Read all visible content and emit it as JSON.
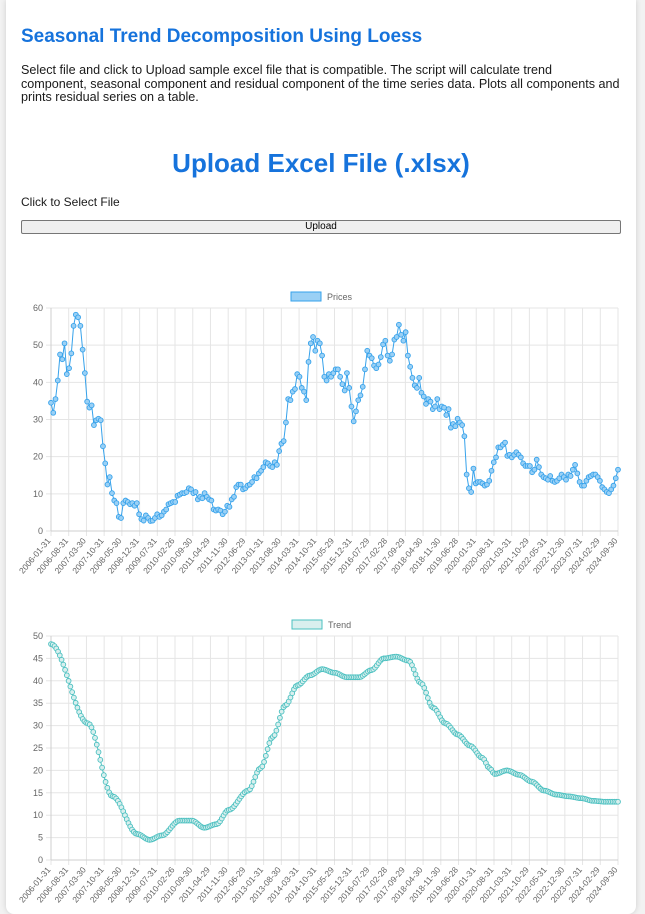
{
  "header": {
    "title": "Seasonal Trend Decomposition Using Loess",
    "description": "Select file and click to Upload sample excel file that is compatible. The script will calculate trend component, seasonal component and residual component of the time series data. Plots all components and prints residual series on a table."
  },
  "upload": {
    "heading": "Upload Excel File (.xlsx)",
    "select_label": "Click to Select File",
    "button_label": "Upload"
  },
  "colors": {
    "title": "#1673dc",
    "prices_line": "#36a2eb",
    "prices_fill": "#9ad0f5",
    "trend_line": "#4bc0c0",
    "trend_fill": "#d9efee"
  },
  "chart_data": [
    {
      "type": "line",
      "legend_position": "top",
      "grid": true,
      "ylim": [
        0,
        60
      ],
      "yticks": [
        0,
        10,
        20,
        30,
        40,
        50,
        60
      ],
      "x_tick_labels": [
        "2006-01-31",
        "2006-08-31",
        "2007-03-30",
        "2007-10-31",
        "2008-05-30",
        "2008-12-31",
        "2009-07-31",
        "2010-02-26",
        "2010-09-30",
        "2011-04-29",
        "2011-11-30",
        "2012-06-29",
        "2013-01-31",
        "2013-08-30",
        "2014-03-31",
        "2014-10-31",
        "2015-05-29",
        "2015-12-31",
        "2016-07-29",
        "2017-02-28",
        "2017-09-29",
        "2018-04-30",
        "2018-11-30",
        "2019-06-28",
        "2020-01-31",
        "2020-08-31",
        "2021-03-31",
        "2021-10-29",
        "2022-05-31",
        "2022-12-30",
        "2023-07-31",
        "2024-02-29",
        "2024-09-30"
      ],
      "series": [
        {
          "name": "Prices",
          "values": [
            34.5,
            31.8,
            35.5,
            40.5,
            47.5,
            46.2,
            50.5,
            42.2,
            43.8,
            47.8,
            55.2,
            58.2,
            57.5,
            55.2,
            48.8,
            42.5,
            34.8,
            33.2,
            33.8,
            28.5,
            29.8,
            30.2,
            29.8,
            22.8,
            18.2,
            12.5,
            14.5,
            10.2,
            8.2,
            7.5,
            3.8,
            3.5,
            7.5,
            8.2,
            7.8,
            7.2,
            7.5,
            6.8,
            7.5,
            4.5,
            3.2,
            2.8,
            4.2,
            3.5,
            2.7,
            2.8,
            3.5,
            4.5,
            3.8,
            4.2,
            5.2,
            5.8,
            7.2,
            7.5,
            7.8,
            7.8,
            9.5,
            9.8,
            10.2,
            10.2,
            10.5,
            11.5,
            11.2,
            10.2,
            10.5,
            8.5,
            9.2,
            8.8,
            10.2,
            9.2,
            8.5,
            8.2,
            5.8,
            5.5,
            5.8,
            5.5,
            4.5,
            5.2,
            6.8,
            6.5,
            8.5,
            9.2,
            11.8,
            12.5,
            12.5,
            11.2,
            11.5,
            12.2,
            12.5,
            13.2,
            14.5,
            14.2,
            15.5,
            16.2,
            17.2,
            18.5,
            18.2,
            17.5,
            17.2,
            18.5,
            17.8,
            21.5,
            23.5,
            24.2,
            29.2,
            35.5,
            35.2,
            37.5,
            38.2,
            42.2,
            41.5,
            38.5,
            37.5,
            35.2,
            45.5,
            50.5,
            52.2,
            48.5,
            51.2,
            50.5,
            47.2,
            41.5,
            40.5,
            42.2,
            41.5,
            42.5,
            43.5,
            43.5,
            41.5,
            39.5,
            37.8,
            42.5,
            38.5,
            33.5,
            29.5,
            32.2,
            35.2,
            36.5,
            38.8,
            43.5,
            48.5,
            47.2,
            46.5,
            44.5,
            43.8,
            44.8,
            46.8,
            50.2,
            51.2,
            47.2,
            45.8,
            47.5,
            51.5,
            52.2,
            55.5,
            52.8,
            51.2,
            53.5,
            47.2,
            44.2,
            41.2,
            39.2,
            38.5,
            41.2,
            37.2,
            36.2,
            34.2,
            35.5,
            34.8,
            32.8,
            33.5,
            35.5,
            32.8,
            33.5,
            33.2,
            31.2,
            32.8,
            27.8,
            28.8,
            28.2,
            30.2,
            29.2,
            28.5,
            25.5,
            15.2,
            11.5,
            10.5,
            16.8,
            12.8,
            13.2,
            13.2,
            12.8,
            12.2,
            12.5,
            13.5,
            16.2,
            18.5,
            19.8,
            22.5,
            22.5,
            23.2,
            23.8,
            20.2,
            20.5,
            19.8,
            20.5,
            21.2,
            20.5,
            19.8,
            18.2,
            17.5,
            17.5,
            17.5,
            15.8,
            16.5,
            19.2,
            17.2,
            15.2,
            14.5,
            14.2,
            13.8,
            14.8,
            13.5,
            13.2,
            13.5,
            14.2,
            15.2,
            14.5,
            13.8,
            15.2,
            14.8,
            16.5,
            17.8,
            15.5,
            13.2,
            12.2,
            12.2,
            13.5,
            14.5,
            14.8,
            15.2,
            15.2,
            14.5,
            13.5,
            11.8,
            11.2,
            10.5,
            10.2,
            11.2,
            12.2,
            14.2,
            16.5
          ]
        }
      ]
    },
    {
      "type": "line",
      "legend_position": "top",
      "grid": true,
      "ylim": [
        0,
        50
      ],
      "yticks": [
        0,
        5,
        10,
        15,
        20,
        25,
        30,
        35,
        40,
        45,
        50
      ],
      "x_tick_labels": [
        "2006-01-31",
        "2006-08-31",
        "2007-03-30",
        "2007-10-31",
        "2008-05-30",
        "2008-12-31",
        "2009-07-31",
        "2010-02-26",
        "2010-09-30",
        "2011-04-29",
        "2011-11-30",
        "2012-06-29",
        "2013-01-31",
        "2013-08-30",
        "2014-03-31",
        "2014-10-31",
        "2015-05-29",
        "2015-12-31",
        "2016-07-29",
        "2017-02-28",
        "2017-09-29",
        "2018-04-30",
        "2018-11-30",
        "2019-06-28",
        "2020-01-31",
        "2020-08-31",
        "2021-03-31",
        "2021-10-29",
        "2022-05-31",
        "2022-12-30",
        "2023-07-31",
        "2024-02-29",
        "2024-09-30"
      ],
      "series": [
        {
          "name": "Trend",
          "anchors": [
            [
              0,
              48.2
            ],
            [
              21,
              30.5
            ],
            [
              35,
              14.2
            ],
            [
              49,
              5.8
            ],
            [
              56,
              4.5
            ],
            [
              63,
              5.5
            ],
            [
              73,
              8.8
            ],
            [
              80,
              8.8
            ],
            [
              87,
              7.2
            ],
            [
              94,
              8.0
            ],
            [
              101,
              11.2
            ],
            [
              112,
              15.5
            ],
            [
              119,
              20.5
            ],
            [
              126,
              27.5
            ],
            [
              133,
              34.5
            ],
            [
              140,
              39.0
            ],
            [
              147,
              41.2
            ],
            [
              154,
              42.6
            ],
            [
              161,
              41.8
            ],
            [
              168,
              40.8
            ],
            [
              175,
              40.8
            ],
            [
              182,
              42.4
            ],
            [
              189,
              45.0
            ],
            [
              196,
              45.4
            ],
            [
              203,
              44.5
            ],
            [
              210,
              39.5
            ],
            [
              217,
              34.0
            ],
            [
              224,
              30.5
            ],
            [
              231,
              28.0
            ],
            [
              238,
              25.5
            ],
            [
              245,
              22.8
            ],
            [
              249,
              20.5
            ],
            [
              252,
              19.2
            ],
            [
              259,
              20.0
            ],
            [
              266,
              19.0
            ],
            [
              273,
              17.5
            ],
            [
              280,
              15.5
            ],
            [
              287,
              14.6
            ],
            [
              294,
              14.2
            ],
            [
              301,
              13.8
            ],
            [
              308,
              13.2
            ],
            [
              315,
              13.0
            ],
            [
              322,
              13.0
            ]
          ]
        }
      ]
    }
  ]
}
